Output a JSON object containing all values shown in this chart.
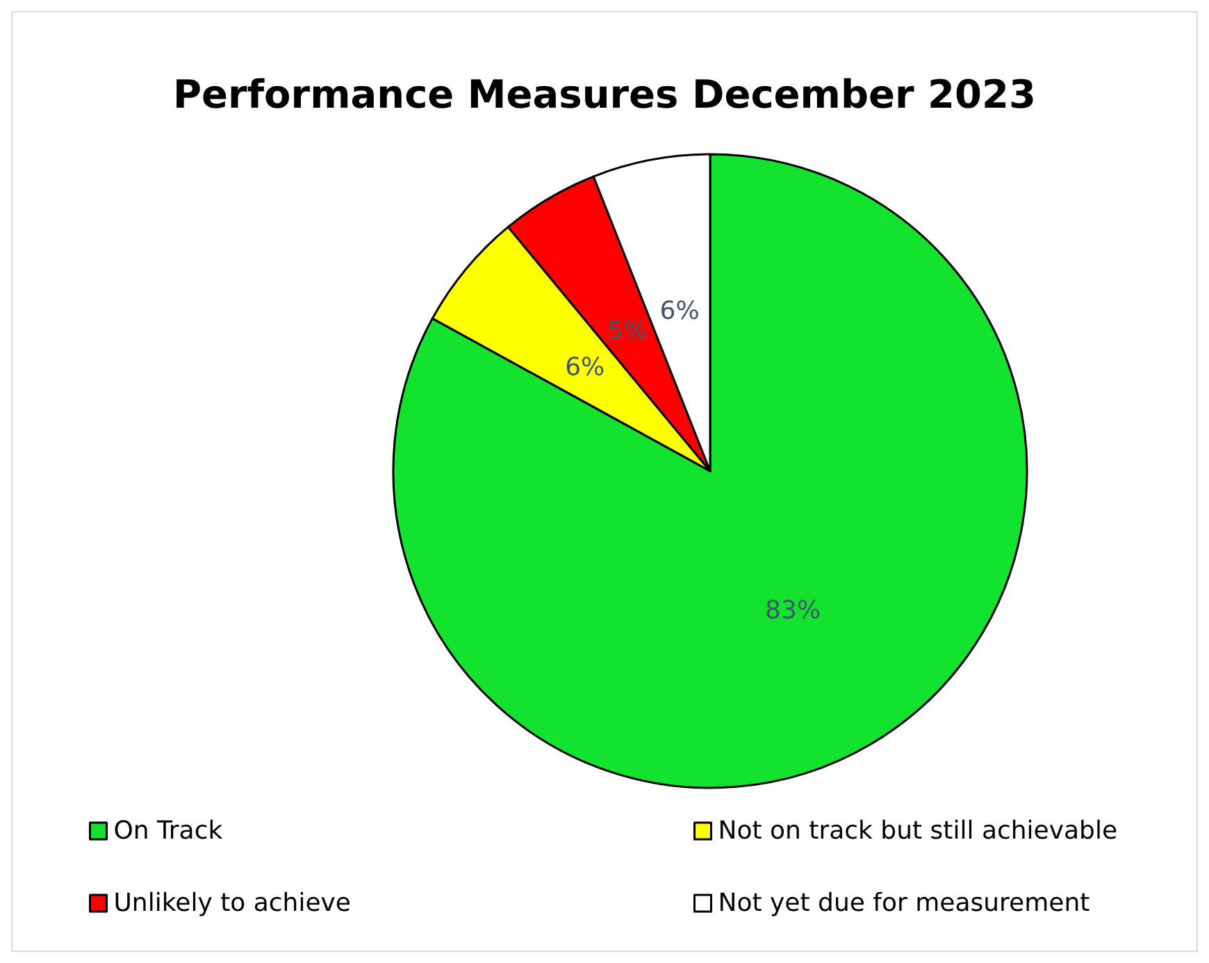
{
  "chart_data": {
    "type": "pie",
    "title": "Performance Measures December 2023",
    "categories": [
      "On Track",
      "Not on track but still achievable",
      "Unlikely to achieve",
      "Not yet due for measurement"
    ],
    "values": [
      83,
      6,
      5,
      6
    ],
    "colors": [
      "#13e22f",
      "#ffff00",
      "#ff0000",
      "#ffffff"
    ],
    "value_labels": [
      "83%",
      "6%",
      "5%",
      "6%"
    ],
    "legend": "bottom"
  }
}
